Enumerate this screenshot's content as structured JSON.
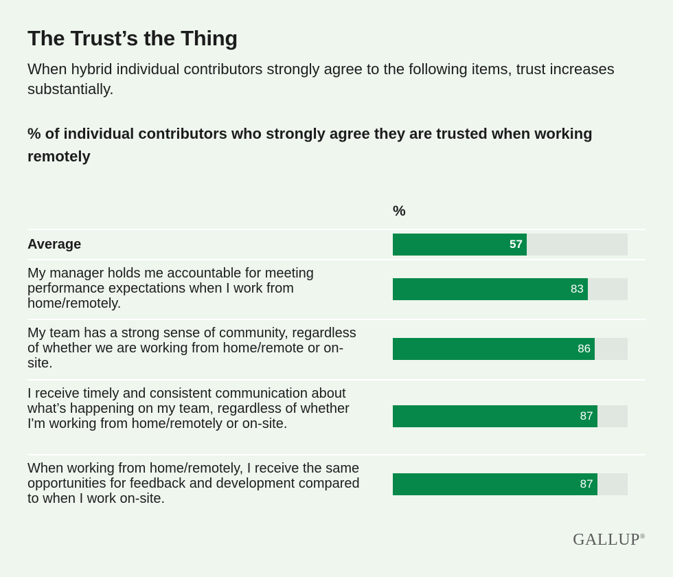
{
  "header": {
    "title": "The Trust’s the Thing",
    "subtitle": "When hybrid individual contributors strongly agree to the following items, trust increases substantially.",
    "question": "% of individual contributors who strongly agree they are trusted when working remotely"
  },
  "brand": {
    "logo_text": "GALLUP",
    "registered_mark": "®"
  },
  "colors": {
    "bar": "#058849",
    "track": "#e0e6e0",
    "background": "#eef6ee"
  },
  "chart_data": {
    "type": "bar",
    "orientation": "horizontal",
    "unit_label": "%",
    "xlim": [
      0,
      100
    ],
    "categories": [
      "Average",
      "My manager holds me accountable for meeting performance expectations when I work from home/remotely.",
      "My team has a strong sense of community, regardless of whether we are working from home/remote or on-site.",
      "I receive timely and consistent communication about what’s happening on my team, regardless of whether I'm working from home/remotely or on-site.",
      "When working from home/remotely, I receive the same opportunities for feedback and development compared to when I work on-site."
    ],
    "values": [
      57,
      83,
      86,
      87,
      87
    ],
    "value_labels": [
      "57",
      "83",
      "86",
      "87",
      "87"
    ],
    "grid": false,
    "legend": "none"
  }
}
